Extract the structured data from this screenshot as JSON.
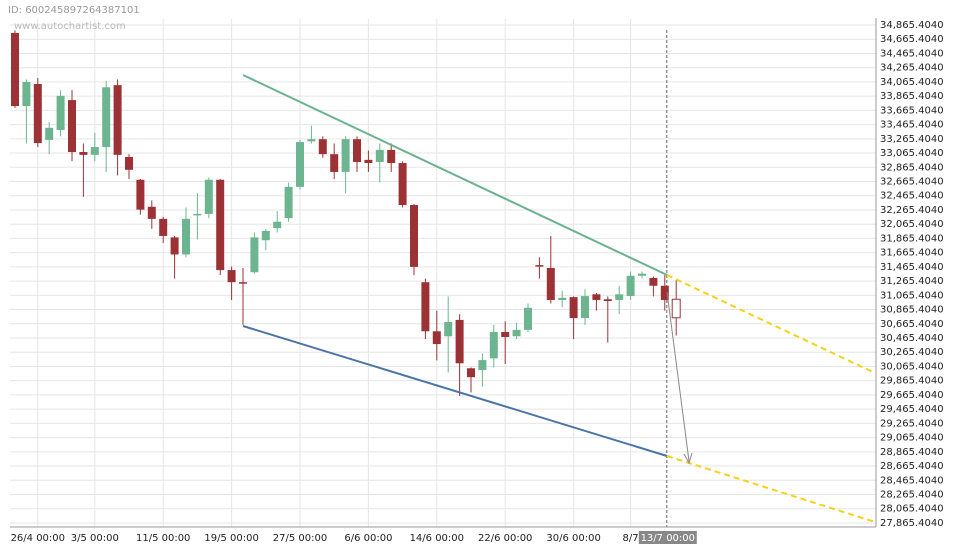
{
  "header": {
    "id": "ID: 600245897264387101",
    "watermark": "www.autochartist.com"
  },
  "chart_data": {
    "type": "candlestick",
    "categories": [
      null,
      null,
      "26/4 00:00",
      null,
      null,
      null,
      null,
      "3/5 00:00",
      null,
      null,
      null,
      null,
      null,
      "11/5 00:00",
      null,
      null,
      null,
      null,
      null,
      "19/5 00:00",
      null,
      null,
      null,
      null,
      null,
      "27/5 00:00",
      null,
      null,
      null,
      null,
      null,
      "6/6 00:00",
      null,
      null,
      null,
      null,
      null,
      "14/6 00:00",
      null,
      null,
      null,
      null,
      null,
      "22/6 00:00",
      null,
      null,
      null,
      null,
      null,
      "30/6 00:00",
      null,
      null,
      null,
      null,
      "8/7",
      null,
      null,
      "13/7 00:00",
      null
    ],
    "open": [
      34753,
      33726,
      34036,
      33250,
      33390,
      33810,
      33080,
      33040,
      33150,
      34020,
      33010,
      32690,
      32310,
      32140,
      31880,
      31640,
      32190,
      32210,
      32690,
      31420,
      31250,
      31390,
      31840,
      32010,
      32150,
      32590,
      33230,
      33260,
      33050,
      32800,
      33260,
      32970,
      32940,
      33110,
      32925,
      32335,
      31250,
      30560,
      30490,
      30720,
      30040,
      30015,
      30180,
      30550,
      30490,
      30580,
      31490,
      31450,
      31000,
      31040,
      30745,
      31080,
      31010,
      31000,
      31055,
      31340,
      31310,
      31200,
      31010
    ],
    "high": [
      34790,
      34100,
      34120,
      33500,
      33950,
      33950,
      33200,
      33350,
      34080,
      34100,
      33050,
      32700,
      32400,
      32170,
      31900,
      32300,
      32500,
      32720,
      32700,
      31470,
      31450,
      31950,
      32000,
      32250,
      32650,
      33250,
      33450,
      33300,
      33200,
      33300,
      33300,
      33100,
      33200,
      33200,
      32950,
      32350,
      31300,
      30850,
      31050,
      30800,
      30050,
      30250,
      30650,
      30700,
      30680,
      30950,
      31600,
      31900,
      31130,
      31050,
      31150,
      31100,
      31050,
      31200,
      31400,
      31400,
      31330,
      31350,
      31280
    ],
    "low": [
      33700,
      33200,
      33150,
      33050,
      33300,
      32950,
      32450,
      32950,
      32800,
      32750,
      32700,
      32200,
      32000,
      31800,
      31300,
      31600,
      31850,
      32150,
      31350,
      31000,
      30650,
      31370,
      31700,
      31950,
      32100,
      32550,
      33200,
      33000,
      32700,
      32500,
      32800,
      32800,
      32650,
      32800,
      32300,
      31350,
      30450,
      30150,
      29980,
      29650,
      29700,
      29780,
      30050,
      30100,
      30450,
      30550,
      31300,
      30950,
      30900,
      30450,
      30650,
      30850,
      30400,
      30800,
      31000,
      31300,
      31050,
      30850,
      30500
    ],
    "close": [
      33726,
      34064,
      33206,
      33420,
      33870,
      33080,
      33040,
      33150,
      33990,
      33040,
      32830,
      32270,
      32140,
      31900,
      31640,
      32140,
      32210,
      32690,
      31420,
      31250,
      31235,
      31880,
      31970,
      32100,
      32590,
      33220,
      33260,
      33050,
      32800,
      33260,
      32940,
      32925,
      33110,
      32925,
      32335,
      31465,
      30560,
      30380,
      30690,
      30110,
      29915,
      30155,
      30550,
      30480,
      30580,
      30890,
      31470,
      31000,
      31030,
      30745,
      31055,
      31000,
      30985,
      31080,
      31340,
      31370,
      31200,
      31000,
      30750
    ],
    "up_color": "#6db590",
    "down_color": "#9c3236",
    "hollow_last": true,
    "crosshair_category": 57,
    "ylim": [
      27800,
      34950
    ],
    "yticks": [
      {
        "value": 27865.404,
        "label": "27,865.4040"
      },
      {
        "value": 28065.404,
        "label": "28,065.4040"
      },
      {
        "value": 28265.404,
        "label": "28,265.4040"
      },
      {
        "value": 28465.404,
        "label": "28,465.4040"
      },
      {
        "value": 28665.404,
        "label": "28,665.4040"
      },
      {
        "value": 28865.404,
        "label": "28,865.4040"
      },
      {
        "value": 29065.404,
        "label": "29,065.4040"
      },
      {
        "value": 29265.404,
        "label": "29,265.4040"
      },
      {
        "value": 29465.404,
        "label": "29,465.4040"
      },
      {
        "value": 29665.404,
        "label": "29,665.4040"
      },
      {
        "value": 29865.404,
        "label": "29,865.4040"
      },
      {
        "value": 30065.404,
        "label": "30,065.4040"
      },
      {
        "value": 30265.404,
        "label": "30,265.4040"
      },
      {
        "value": 30465.404,
        "label": "30,465.4040"
      },
      {
        "value": 30665.404,
        "label": "30,665.4040"
      },
      {
        "value": 30865.404,
        "label": "30,865.4040"
      },
      {
        "value": 31065.404,
        "label": "31,065.4040"
      },
      {
        "value": 31265.404,
        "label": "31,265.4040"
      },
      {
        "value": 31465.404,
        "label": "31,465.4040"
      },
      {
        "value": 31665.404,
        "label": "31,665.4040"
      },
      {
        "value": 31865.404,
        "label": "31,865.4040"
      },
      {
        "value": 32065.404,
        "label": "32,065.4040"
      },
      {
        "value": 32265.404,
        "label": "32,265.4040"
      },
      {
        "value": 32465.404,
        "label": "32,465.4040"
      },
      {
        "value": 32665.404,
        "label": "32,665.4040"
      },
      {
        "value": 32865.404,
        "label": "32,865.4040"
      },
      {
        "value": 33065.404,
        "label": "33,065.4040"
      },
      {
        "value": 33265.404,
        "label": "33,265.4040"
      },
      {
        "value": 33465.404,
        "label": "33,465.4040"
      },
      {
        "value": 33665.404,
        "label": "33,665.4040"
      },
      {
        "value": 33865.404,
        "label": "33,865.4040"
      },
      {
        "value": 34065.404,
        "label": "34,065.4040"
      },
      {
        "value": 34265.404,
        "label": "34,265.4040"
      },
      {
        "value": 34465.404,
        "label": "34,465.4040"
      },
      {
        "value": 34665.404,
        "label": "34,665.4040"
      },
      {
        "value": 34865.404,
        "label": "34,865.4040"
      }
    ],
    "grid": true
  }
}
